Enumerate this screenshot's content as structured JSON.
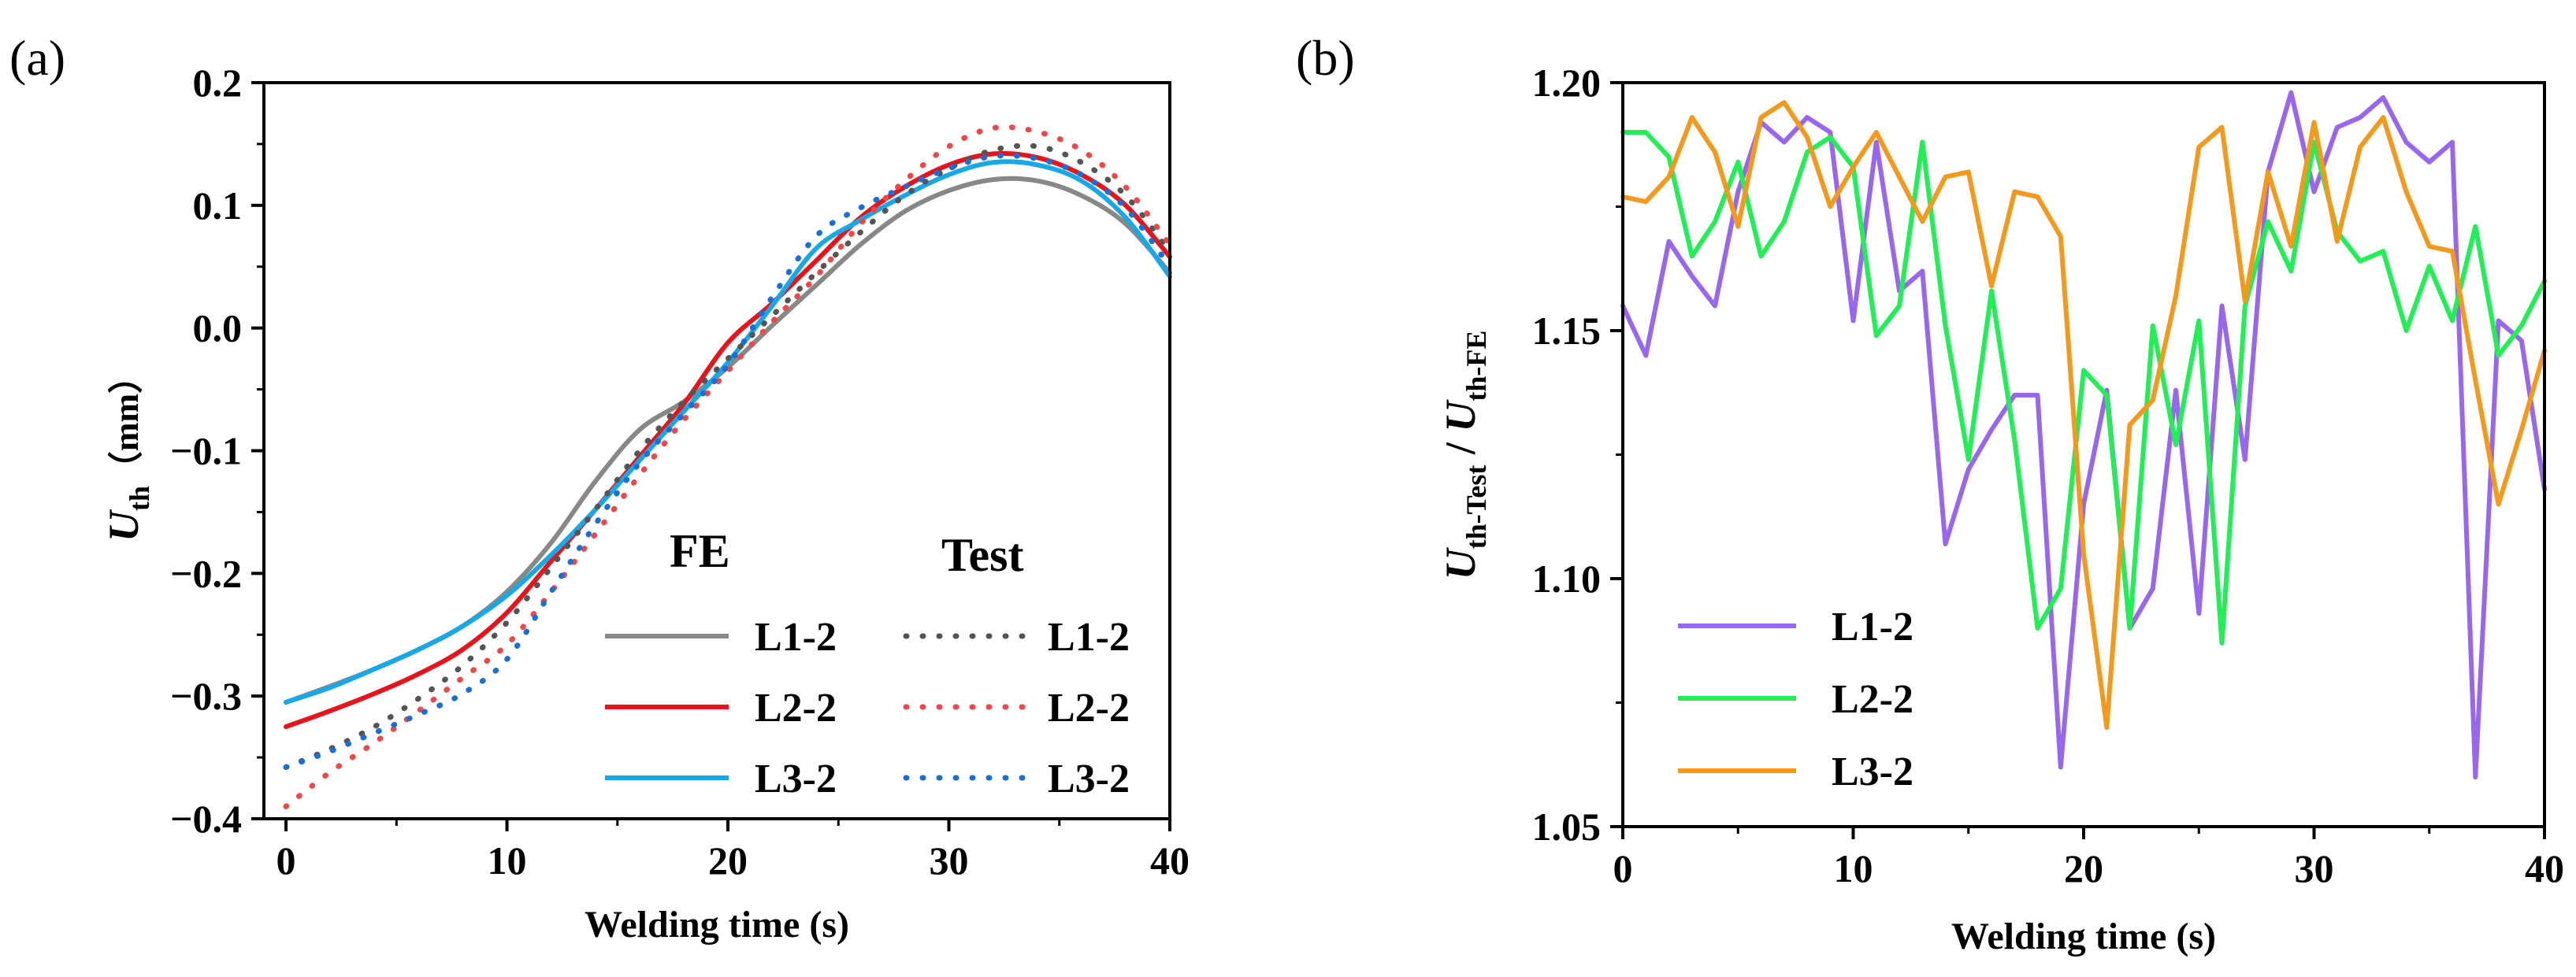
{
  "chart_data": [
    {
      "type": "line",
      "panel_label": "(a)",
      "xlabel": "Welding time (s)",
      "ylabel": {
        "main": "U",
        "sub": "th",
        "unit": "（mm）"
      },
      "xlim": [
        -1,
        40
      ],
      "ylim": [
        -0.4,
        0.2
      ],
      "xticks": [
        "0",
        "10",
        "20",
        "30",
        "40"
      ],
      "yticks": [
        "−0.4",
        "−0.3",
        "−0.2",
        "−0.1",
        "0.0",
        "0.1",
        "0.2"
      ],
      "grid": false,
      "legend": {
        "placement": "bottom-right",
        "headers": [
          "FE",
          "Test"
        ]
      },
      "series": [
        {
          "name": "L1-2",
          "group": "FE",
          "style": "solid",
          "color": "#888888",
          "x": [
            0,
            2,
            4,
            6,
            8,
            10,
            12,
            14,
            16,
            18,
            20,
            22,
            24,
            26,
            28,
            30,
            32,
            34,
            36,
            38,
            40
          ],
          "y": [
            -0.305,
            -0.292,
            -0.278,
            -0.262,
            -0.243,
            -0.215,
            -0.175,
            -0.125,
            -0.083,
            -0.06,
            -0.032,
            0.002,
            0.035,
            0.068,
            0.095,
            0.112,
            0.121,
            0.12,
            0.108,
            0.085,
            0.045
          ]
        },
        {
          "name": "L2-2",
          "group": "FE",
          "style": "solid",
          "color": "#e8141c",
          "x": [
            0,
            2,
            4,
            6,
            8,
            10,
            12,
            14,
            16,
            18,
            20,
            22,
            24,
            26,
            28,
            30,
            32,
            34,
            36,
            38,
            40
          ],
          "y": [
            -0.325,
            -0.312,
            -0.298,
            -0.282,
            -0.262,
            -0.232,
            -0.19,
            -0.148,
            -0.105,
            -0.062,
            -0.012,
            0.02,
            0.055,
            0.09,
            0.115,
            0.133,
            0.142,
            0.139,
            0.125,
            0.1,
            0.058
          ]
        },
        {
          "name": "L3-2",
          "group": "FE",
          "style": "solid",
          "color": "#18a8e8",
          "x": [
            0,
            2,
            4,
            6,
            8,
            10,
            12,
            14,
            16,
            18,
            20,
            22,
            24,
            26,
            28,
            30,
            32,
            34,
            36,
            38,
            40
          ],
          "y": [
            -0.305,
            -0.293,
            -0.278,
            -0.262,
            -0.243,
            -0.218,
            -0.185,
            -0.148,
            -0.108,
            -0.068,
            -0.028,
            0.018,
            0.065,
            0.088,
            0.108,
            0.125,
            0.135,
            0.133,
            0.12,
            0.09,
            0.042
          ]
        },
        {
          "name": "L1-2",
          "group": "Test",
          "style": "dotted",
          "color": "#555555",
          "x": [
            0,
            2,
            4,
            6,
            8,
            10,
            12,
            14,
            16,
            18,
            20,
            22,
            24,
            26,
            28,
            30,
            32,
            34,
            36,
            38,
            40
          ],
          "y": [
            -0.358,
            -0.343,
            -0.325,
            -0.302,
            -0.275,
            -0.24,
            -0.195,
            -0.148,
            -0.1,
            -0.06,
            -0.025,
            0.01,
            0.045,
            0.078,
            0.108,
            0.13,
            0.145,
            0.148,
            0.135,
            0.108,
            0.062
          ]
        },
        {
          "name": "L2-2",
          "group": "Test",
          "style": "dotted",
          "color": "#f04848",
          "x": [
            0,
            2,
            4,
            6,
            8,
            10,
            12,
            14,
            16,
            18,
            20,
            22,
            24,
            26,
            28,
            30,
            32,
            34,
            36,
            38,
            40
          ],
          "y": [
            -0.39,
            -0.362,
            -0.338,
            -0.312,
            -0.285,
            -0.258,
            -0.215,
            -0.168,
            -0.12,
            -0.075,
            -0.035,
            0.005,
            0.042,
            0.085,
            0.12,
            0.148,
            0.163,
            0.16,
            0.145,
            0.115,
            0.068
          ]
        },
        {
          "name": "L3-2",
          "group": "Test",
          "style": "dotted",
          "color": "#1a6fd6",
          "x": [
            0,
            2,
            4,
            6,
            8,
            10,
            12,
            14,
            16,
            18,
            20,
            22,
            24,
            26,
            28,
            30,
            32,
            34,
            36,
            38,
            40
          ],
          "y": [
            -0.358,
            -0.345,
            -0.33,
            -0.315,
            -0.298,
            -0.27,
            -0.215,
            -0.16,
            -0.11,
            -0.07,
            -0.03,
            0.025,
            0.075,
            0.098,
            0.115,
            0.13,
            0.14,
            0.138,
            0.125,
            0.098,
            0.05
          ]
        }
      ]
    },
    {
      "type": "line",
      "panel_label": "(b)",
      "xlabel": "Welding time (s)",
      "ylabel": {
        "num_main": "U",
        "num_sub": "th-Test",
        "sep": " / ",
        "den_main": "U",
        "den_sub": "th-FE"
      },
      "xlim": [
        0,
        40
      ],
      "ylim": [
        1.05,
        1.2
      ],
      "xticks": [
        "0",
        "10",
        "20",
        "30",
        "40"
      ],
      "yticks": [
        "1.05",
        "1.10",
        "1.15",
        "1.20"
      ],
      "grid": false,
      "legend": {
        "placement": "bottom-left"
      },
      "series": [
        {
          "name": "L1-2",
          "color": "#9966ee",
          "x": [
            0,
            1,
            2,
            3,
            4,
            5,
            6,
            7,
            8,
            9,
            10,
            11,
            12,
            13,
            14,
            15,
            16,
            17,
            18,
            19,
            20,
            21,
            22,
            23,
            24,
            25,
            26,
            27,
            28,
            29,
            30,
            31,
            32,
            33,
            34,
            35,
            36,
            37,
            38,
            39,
            40
          ],
          "y": [
            1.155,
            1.145,
            1.168,
            1.161,
            1.155,
            1.178,
            1.192,
            1.188,
            1.193,
            1.19,
            1.152,
            1.188,
            1.158,
            1.162,
            1.107,
            1.122,
            1.13,
            1.137,
            1.137,
            1.062,
            1.115,
            1.138,
            1.09,
            1.098,
            1.138,
            1.093,
            1.155,
            1.124,
            1.182,
            1.198,
            1.178,
            1.191,
            1.193,
            1.197,
            1.188,
            1.184,
            1.188,
            1.06,
            1.152,
            1.148,
            1.118
          ]
        },
        {
          "name": "L2-2",
          "color": "#22ee55",
          "x": [
            0,
            1,
            2,
            3,
            4,
            5,
            6,
            7,
            8,
            9,
            10,
            11,
            12,
            13,
            14,
            15,
            16,
            17,
            18,
            19,
            20,
            21,
            22,
            23,
            24,
            25,
            26,
            27,
            28,
            29,
            30,
            31,
            32,
            33,
            34,
            35,
            36,
            37,
            38,
            39,
            40
          ],
          "y": [
            1.19,
            1.19,
            1.185,
            1.165,
            1.172,
            1.184,
            1.165,
            1.172,
            1.186,
            1.189,
            1.183,
            1.149,
            1.155,
            1.188,
            1.151,
            1.124,
            1.158,
            1.128,
            1.09,
            1.098,
            1.142,
            1.137,
            1.09,
            1.151,
            1.127,
            1.152,
            1.087,
            1.155,
            1.172,
            1.162,
            1.188,
            1.17,
            1.164,
            1.166,
            1.15,
            1.163,
            1.152,
            1.171,
            1.145,
            1.151,
            1.16
          ]
        },
        {
          "name": "L3-2",
          "color": "#f39a1e",
          "x": [
            0,
            1,
            2,
            3,
            4,
            5,
            6,
            7,
            8,
            9,
            10,
            11,
            12,
            13,
            14,
            15,
            16,
            17,
            18,
            19,
            20,
            21,
            22,
            23,
            24,
            25,
            26,
            27,
            28,
            29,
            30,
            31,
            32,
            33,
            34,
            35,
            36,
            37,
            38,
            39,
            40
          ],
          "y": [
            1.177,
            1.176,
            1.181,
            1.193,
            1.186,
            1.171,
            1.193,
            1.196,
            1.189,
            1.175,
            1.183,
            1.19,
            1.181,
            1.172,
            1.181,
            1.182,
            1.159,
            1.178,
            1.177,
            1.169,
            1.105,
            1.07,
            1.131,
            1.136,
            1.157,
            1.187,
            1.191,
            1.156,
            1.182,
            1.167,
            1.192,
            1.168,
            1.187,
            1.193,
            1.178,
            1.167,
            1.166,
            1.14,
            1.115,
            1.13,
            1.146
          ]
        }
      ]
    }
  ]
}
